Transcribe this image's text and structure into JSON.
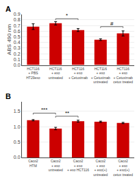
{
  "chart_data": [
    {
      "type": "bar",
      "title": "A",
      "categories": [
        "HCT116\n+ PBS\nHT29exo",
        "HCT116\n+ exo\nuntreated",
        "HCT116\n+ exo\n+ Cetuximab",
        "HCT116\n+ exo\n+ Cetuximab\nuntreated",
        "HCT116\n+ exo\n+ Cetuximab\ncetux treated"
      ],
      "values": [
        0.68,
        0.74,
        0.62,
        0.45,
        0.56
      ],
      "errors": [
        0.05,
        0.03,
        0.025,
        0.015,
        0.045
      ],
      "ylabel": "ABS 490 nm",
      "ylim": [
        0,
        0.9
      ],
      "yticks": [
        {
          "value": 0,
          "label": "0.0"
        },
        0.1,
        0.2,
        0.3,
        0.4,
        0.5,
        0.6,
        0.7,
        0.8,
        0.9
      ],
      "grid": true,
      "color": "#CC0000",
      "annotations": [
        {
          "x1": 1,
          "x2": 2,
          "y": 0.82,
          "text": "*"
        },
        {
          "x1": 3,
          "x2": 4,
          "y": 0.68,
          "text": "#"
        }
      ]
    },
    {
      "type": "bar",
      "title": "B",
      "categories": [
        "Caco2\nHTM",
        "Caco2\n+ exo\nuntreated",
        "Caco2\n+ exo\n+ exo HCT116",
        "Caco2\n+ exo\n+ exo(+)\nuntreated",
        "Caco2\n+ exo\n+ exo(+)\ncetux treated"
      ],
      "values": [
        1.21,
        0.94,
        1.18,
        1.16,
        1.12
      ],
      "errors": [
        0.02,
        0.04,
        0.03,
        0.02,
        0.02
      ],
      "ylim": [
        0,
        1.8
      ],
      "yticks": [
        {
          "value": 0,
          "label": "0.0"
        },
        0.5,
        {
          "value": 1.0,
          "label": "1.0"
        },
        1.5
      ],
      "grid": true,
      "color": "#CC0000",
      "annotations": [
        {
          "x1": 0,
          "x2": 1,
          "y": 1.44,
          "text": "***"
        },
        {
          "x1": 1,
          "x2": 2,
          "y": 1.34,
          "text": "**"
        }
      ]
    }
  ]
}
